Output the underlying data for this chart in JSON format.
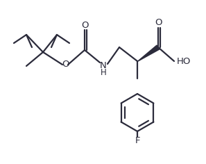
{
  "bg_color": "#ffffff",
  "line_color": "#2b2b3b",
  "line_width": 1.6,
  "text_color": "#2b2b3b",
  "font_size": 9.5,
  "fig_width": 2.97,
  "fig_height": 2.36,
  "dpi": 100,
  "xlim": [
    0,
    297
  ],
  "ylim": [
    0,
    236
  ],
  "label_NH": "NH",
  "label_H": "H",
  "label_O_carbamate": "O",
  "label_O_carboxyl": "O",
  "label_OH": "HO",
  "label_F": "F"
}
